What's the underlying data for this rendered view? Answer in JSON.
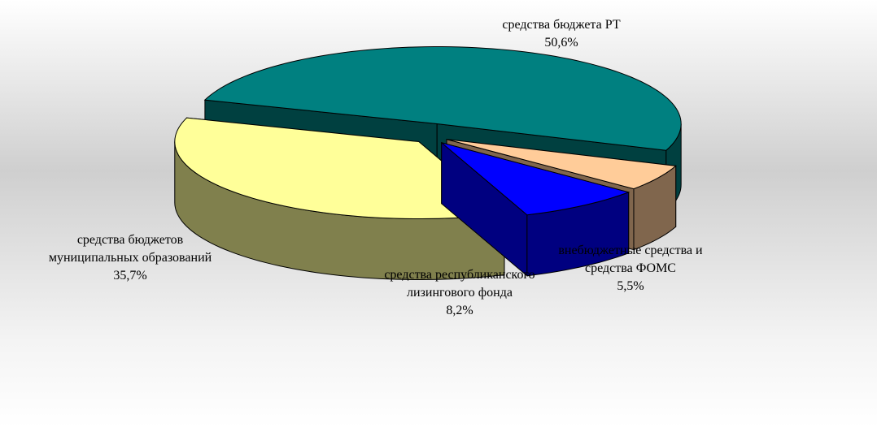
{
  "chart_data": {
    "type": "pie",
    "categories": [
      "средства бюджета РТ",
      "внебюджетные средства и средства ФОМС",
      "средства республиканского лизингового фонда",
      "средства бюджетов муниципальных образований"
    ],
    "values": [
      50.6,
      5.5,
      8.2,
      35.7
    ],
    "value_labels": [
      "50,6%",
      "5,5%",
      "8,2%",
      "35,7%"
    ],
    "colors": [
      "#008080",
      "#FFCC99",
      "#0000FF",
      "#FFFF99"
    ]
  }
}
